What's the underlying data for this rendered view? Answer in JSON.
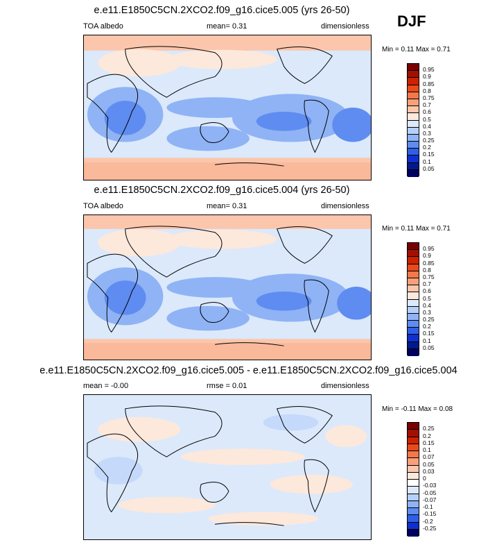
{
  "season": "DJF",
  "panels": [
    {
      "title": "e.e11.E1850C5CN.2XCO2.f09_g16.cice5.005 (yrs 26-50)",
      "left_label": "TOA albedo",
      "center_label": "mean=   0.31",
      "right_label": "dimensionless",
      "minmax": "Min =   0.11 Max =   0.71",
      "colorbar_labels": [
        "0.95",
        "0.9",
        "0.85",
        "0.8",
        "0.75",
        "0.7",
        "0.6",
        "0.5",
        "0.4",
        "0.3",
        "0.25",
        "0.2",
        "0.15",
        "0.1",
        "0.05"
      ]
    },
    {
      "title": "e.e11.E1850C5CN.2XCO2.f09_g16.cice5.004 (yrs 26-50)",
      "left_label": "TOA albedo",
      "center_label": "mean=   0.31",
      "right_label": "dimensionless",
      "minmax": "Min =   0.11 Max =   0.71",
      "colorbar_labels": [
        "0.95",
        "0.9",
        "0.85",
        "0.8",
        "0.75",
        "0.7",
        "0.6",
        "0.5",
        "0.4",
        "0.3",
        "0.25",
        "0.2",
        "0.15",
        "0.1",
        "0.05"
      ]
    },
    {
      "title": "e.e11.E1850C5CN.2XCO2.f09_g16.cice5.005 - e.e11.E1850C5CN.2XCO2.f09_g16.cice5.004",
      "left_label": "mean =  -0.00",
      "center_label": "rmse =   0.01",
      "right_label": "dimensionless",
      "minmax": "Min =  -0.11 Max =   0.08",
      "colorbar_labels": [
        "0.25",
        "0.2",
        "0.15",
        "0.1",
        "0.07",
        "0.05",
        "0.03",
        "0",
        "-0.03",
        "-0.05",
        "-0.07",
        "-0.1",
        "-0.15",
        "-0.2",
        "-0.25"
      ]
    }
  ],
  "colors": {
    "main_scale": [
      "#7a0000",
      "#a31000",
      "#cc2200",
      "#e84a1c",
      "#f2784a",
      "#f7a07a",
      "#fbc6ab",
      "#fde8dc",
      "#dbe9fb",
      "#b5cffa",
      "#8fb3f5",
      "#5f8cf0",
      "#2f5fe6",
      "#0f2fd0",
      "#001a8c",
      "#000060"
    ],
    "diff_scale": [
      "#7a0000",
      "#a31000",
      "#cc2200",
      "#e84a1c",
      "#f2784a",
      "#f7a07a",
      "#fbc6ab",
      "#fde8dc",
      "#ffffff",
      "#dbe9fb",
      "#b5cffa",
      "#8fb3f5",
      "#5f8cf0",
      "#2f5fe6",
      "#0f2fd0",
      "#000060"
    ]
  },
  "chart_data": [
    {
      "type": "heatmap",
      "title": "e.e11.E1850C5CN.2XCO2.f09_g16.cice5.005 (yrs 26-50)",
      "variable": "TOA albedo",
      "units": "dimensionless",
      "mean": 0.31,
      "min": 0.11,
      "max": 0.71,
      "levels": [
        0.05,
        0.1,
        0.15,
        0.2,
        0.25,
        0.3,
        0.4,
        0.5,
        0.6,
        0.7,
        0.75,
        0.8,
        0.85,
        0.9,
        0.95
      ]
    },
    {
      "type": "heatmap",
      "title": "e.e11.E1850C5CN.2XCO2.f09_g16.cice5.004 (yrs 26-50)",
      "variable": "TOA albedo",
      "units": "dimensionless",
      "mean": 0.31,
      "min": 0.11,
      "max": 0.71,
      "levels": [
        0.05,
        0.1,
        0.15,
        0.2,
        0.25,
        0.3,
        0.4,
        0.5,
        0.6,
        0.7,
        0.75,
        0.8,
        0.85,
        0.9,
        0.95
      ]
    },
    {
      "type": "heatmap",
      "title": "e.e11.E1850C5CN.2XCO2.f09_g16.cice5.005 - e.e11.E1850C5CN.2XCO2.f09_g16.cice5.004",
      "units": "dimensionless",
      "mean": -0.0,
      "rmse": 0.01,
      "min": -0.11,
      "max": 0.08,
      "levels": [
        -0.25,
        -0.2,
        -0.15,
        -0.1,
        -0.07,
        -0.05,
        -0.03,
        0,
        0.03,
        0.05,
        0.07,
        0.1,
        0.15,
        0.2,
        0.25
      ]
    }
  ]
}
